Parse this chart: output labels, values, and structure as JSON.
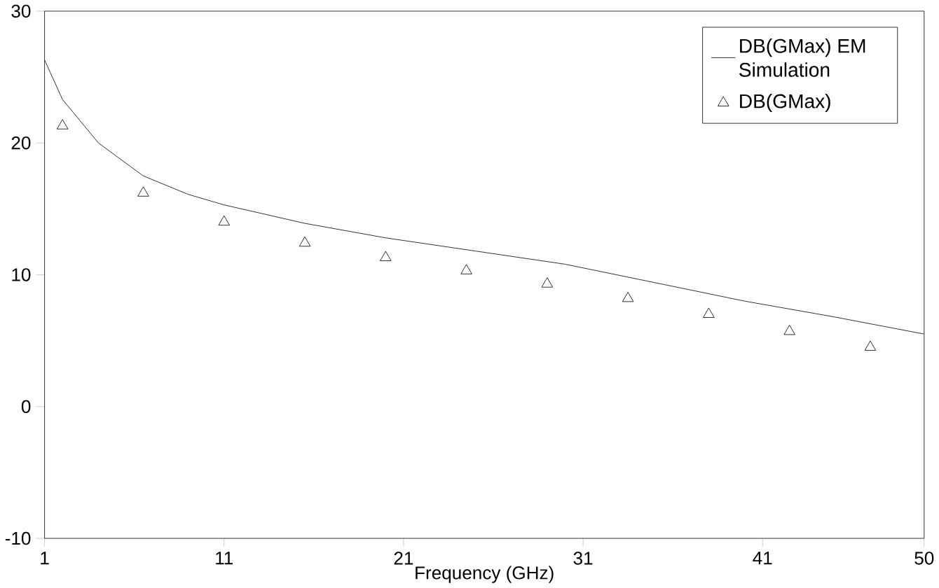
{
  "chart_data": {
    "type": "line",
    "xlabel": "Frequency (GHz)",
    "xlim": [
      1,
      50
    ],
    "xticks": [
      1,
      11,
      21,
      31,
      41,
      50
    ],
    "ylim": [
      -10,
      30
    ],
    "yticks": [
      -10,
      0,
      10,
      20,
      30
    ],
    "grid": false,
    "legend": "top right",
    "series": [
      {
        "name": "DB(GMax) EM Simulation",
        "type": "line",
        "color": "#000000",
        "marker": "none",
        "line_style": "solid",
        "x": [
          1,
          2,
          4,
          6.5,
          9,
          11,
          15.5,
          20,
          25,
          30,
          35,
          40,
          45,
          50
        ],
        "values": [
          26.3,
          23.3,
          20.0,
          17.5,
          16.1,
          15.3,
          13.9,
          12.8,
          11.8,
          10.8,
          9.4,
          8.0,
          6.8,
          5.5
        ]
      },
      {
        "name": "DB(GMax)",
        "type": "scatter",
        "color": "#000000",
        "marker": "triangle",
        "x": [
          2,
          6.5,
          11,
          15.5,
          20,
          24.5,
          29,
          33.5,
          38,
          42.5,
          47
        ],
        "values": [
          21.3,
          16.2,
          14.0,
          12.4,
          11.3,
          10.3,
          9.3,
          8.2,
          7.0,
          5.7,
          4.5
        ]
      }
    ]
  }
}
